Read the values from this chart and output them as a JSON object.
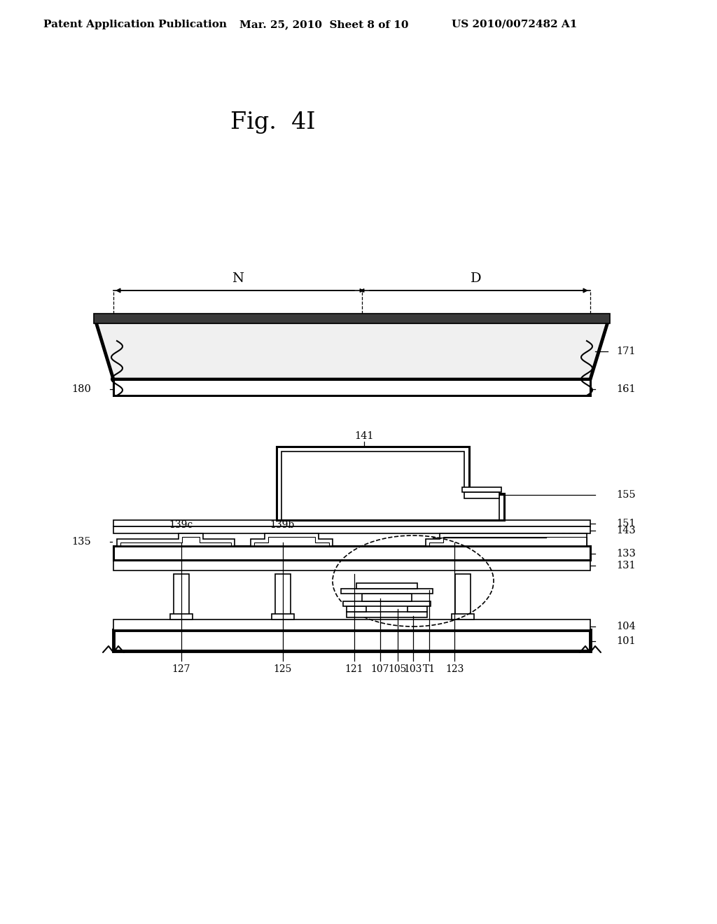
{
  "bg_color": "#ffffff",
  "header_left": "Patent Application Publication",
  "header_mid": "Mar. 25, 2010  Sheet 8 of 10",
  "header_right": "US 2010/0072482 A1",
  "fig_title": "Fig.  4I"
}
